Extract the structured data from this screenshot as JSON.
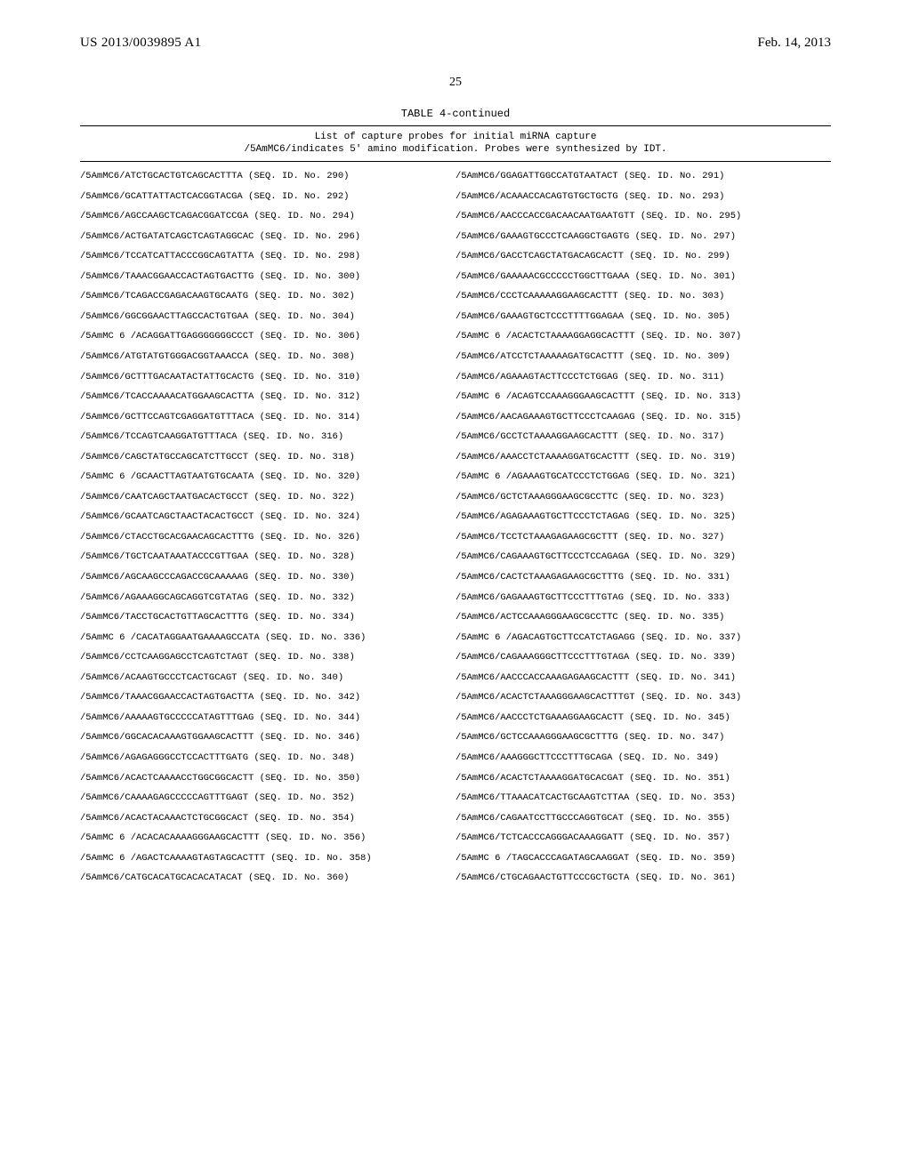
{
  "header": {
    "pub_number": "US 2013/0039895 A1",
    "pub_date": "Feb. 14, 2013"
  },
  "page_number": "25",
  "table": {
    "title": "TABLE 4-continued",
    "subtitle_line1": "List of capture probes for initial miRNA capture",
    "subtitle_line2": "/5AmMC6/indicates 5' amino modification. Probes were synthesized by IDT.",
    "rows": [
      {
        "l": "/5AmMC6/ATCTGCACTGTCAGCACTTTA (SEQ. ID. No. 290)",
        "r": "/5AmMC6/GGAGATTGGCCATGTAATACT (SEQ. ID. No. 291)"
      },
      {
        "l": "/5AmMC6/GCATTATTACTCACGGTACGA (SEQ. ID. No. 292)",
        "r": "/5AmMC6/ACAAACCACAGTGTGCTGCTG (SEQ. ID. No. 293)"
      },
      {
        "l": "/5AmMC6/AGCCAAGCTCAGACGGATCCGA (SEQ. ID. No. 294)",
        "r": "/5AmMC6/AACCCACCGACAACAATGAATGTT (SEQ. ID. No. 295)"
      },
      {
        "l": "/5AmMC6/ACTGATATCAGCTCAGTAGGCAC (SEQ. ID. No. 296)",
        "r": "/5AmMC6/GAAAGTGCCCTCAAGGCTGAGTG (SEQ. ID. No. 297)"
      },
      {
        "l": "/5AmMC6/TCCATCATTACCCGGCAGTATTA (SEQ. ID. No. 298)",
        "r": "/5AmMC6/GACCTCAGCTATGACAGCACTT (SEQ. ID. No. 299)"
      },
      {
        "l": "/5AmMC6/TAAACGGAACCACTAGTGACTTG (SEQ. ID. No. 300)",
        "r": "/5AmMC6/GAAAAACGCCCCCTGGCTTGAAA (SEQ. ID. No. 301)"
      },
      {
        "l": "/5AmMC6/TCAGACCGAGACAAGTGCAATG (SEQ. ID. No. 302)",
        "r": "/5AmMC6/CCCTCAAAAAGGAAGCACTTT (SEQ. ID. No. 303)"
      },
      {
        "l": "/5AmMC6/GGCGGAACTTAGCCACTGTGAA (SEQ. ID. No. 304)",
        "r": "/5AmMC6/GAAAGTGCTCCCTTTTGGAGAA (SEQ. ID. No. 305)"
      },
      {
        "l": "/5AmMC 6 /ACAGGATTGAGGGGGGGCCCT (SEQ. ID. No. 306)",
        "r": "/5AmMC 6 /ACACTCTAAAAGGAGGCACTTT (SEQ. ID. No. 307)"
      },
      {
        "l": "/5AmMC6/ATGTATGTGGGACGGTAAACCA (SEQ. ID. No. 308)",
        "r": "/5AmMC6/ATCCTCTAAAAAGATGCACTTT (SEQ. ID. No. 309)"
      },
      {
        "l": "/5AmMC6/GCTTTGACAATACTATTGCACTG (SEQ. ID. No. 310)",
        "r": "/5AmMC6/AGAAAGTACTTCCCTCTGGAG (SEQ. ID. No. 311)"
      },
      {
        "l": "/5AmMC6/TCACCAAAACATGGAAGCACTTA (SEQ. ID. No. 312)",
        "r": "/5AmMC 6 /ACAGTCCAAAGGGAAGCACTTT (SEQ. ID. No. 313)"
      },
      {
        "l": "/5AmMC6/GCTTCCAGTCGAGGATGTTTACA (SEQ. ID. No. 314)",
        "r": "/5AmMC6/AACAGAAAGTGCTTCCCTCAAGAG (SEQ. ID. No. 315)"
      },
      {
        "l": "/5AmMC6/TCCAGTCAAGGATGTTTACA (SEQ. ID. No. 316)",
        "r": "/5AmMC6/GCCTCTAAAAGGAAGCACTTT (SEQ. ID. No. 317)"
      },
      {
        "l": "/5AmMC6/CAGCTATGCCAGCATCTTGCCT (SEQ. ID. No. 318)",
        "r": "/5AmMC6/AAACCTCTAAAAGGATGCACTTT (SEQ. ID. No. 319)"
      },
      {
        "l": "/5AmMC 6 /GCAACTTAGTAATGTGCAATA (SEQ. ID. No. 320)",
        "r": "/5AmMC 6 /AGAAAGTGCATCCCTCTGGAG (SEQ. ID. No. 321)"
      },
      {
        "l": "/5AmMC6/CAATCAGCTAATGACACTGCCT (SEQ. ID. No. 322)",
        "r": "/5AmMC6/GCTCTAAAGGGAAGCGCCTTC (SEQ. ID. No. 323)"
      },
      {
        "l": "/5AmMC6/GCAATCAGCTAACTACACTGCCT (SEQ. ID. No. 324)",
        "r": "/5AmMC6/AGAGAAAGTGCTTCCCTCTAGAG (SEQ. ID. No. 325)"
      },
      {
        "l": "/5AmMC6/CTACCTGCACGAACAGCACTTTG (SEQ. ID. No. 326)",
        "r": "/5AmMC6/TCCTCTAAAGAGAAGCGCTTT (SEQ. ID. No. 327)"
      },
      {
        "l": "/5AmMC6/TGCTCAATAAATACCCGTTGAA (SEQ. ID. No. 328)",
        "r": "/5AmMC6/CAGAAAGTGCTTCCCTCCAGAGA (SEQ. ID. No. 329)"
      },
      {
        "l": "/5AmMC6/AGCAAGCCCAGACCGCAAAAAG (SEQ. ID. No. 330)",
        "r": "/5AmMC6/CACTCTAAAGAGAAGCGCTTTG (SEQ. ID. No. 331)"
      },
      {
        "l": "/5AmMC6/AGAAAGGCAGCAGGTCGTATAG (SEQ. ID. No. 332)",
        "r": "/5AmMC6/GAGAAAGTGCTTCCCTTTGTAG (SEQ. ID. No. 333)"
      },
      {
        "l": "/5AmMC6/TACCTGCACTGTTAGCACTTTG (SEQ. ID. No. 334)",
        "r": "/5AmMC6/ACTCCAAAGGGAAGCGCCTTC (SEQ. ID. No. 335)"
      },
      {
        "l": "/5AmMC 6 /CACATAGGAATGAAAAGCCATA (SEQ. ID. No. 336)",
        "r": "/5AmMC 6 /AGACAGTGCTTCCATCTAGAGG (SEQ. ID. No. 337)"
      },
      {
        "l": "/5AmMC6/CCTCAAGGAGCCTCAGTCTAGT (SEQ. ID. No. 338)",
        "r": "/5AmMC6/CAGAAAGGGCTTCCCTTTGTAGA (SEQ. ID. No. 339)"
      },
      {
        "l": "/5AmMC6/ACAAGTGCCCTCACTGCAGT (SEQ. ID. No. 340)",
        "r": "/5AmMC6/AACCCACCAAAGAGAAGCACTTT (SEQ. ID. No. 341)"
      },
      {
        "l": "/5AmMC6/TAAACGGAACCACTAGTGACTTA (SEQ. ID. No. 342)",
        "r": "/5AmMC6/ACACTCTAAAGGGAAGCACTTTGT (SEQ. ID. No. 343)"
      },
      {
        "l": "/5AmMC6/AAAAAGTGCCCCCATAGTTTGAG (SEQ. ID. No. 344)",
        "r": "/5AmMC6/AACCCTCTGAAAGGAAGCACTT (SEQ. ID. No. 345)"
      },
      {
        "l": "/5AmMC6/GGCACACAAAGTGGAAGCACTTT (SEQ. ID. No. 346)",
        "r": "/5AmMC6/GCTCCAAAGGGAAGCGCTTTG (SEQ. ID. No. 347)"
      },
      {
        "l": "/5AmMC6/AGAGAGGGCCTCCACTTTGATG (SEQ. ID. No. 348)",
        "r": "/5AmMC6/AAAGGGCTTCCCTTTGCAGA (SEQ. ID. No. 349)"
      },
      {
        "l": "/5AmMC6/ACACTCAAAACCTGGCGGCACTT (SEQ. ID. No. 350)",
        "r": "/5AmMC6/ACACTCTAAAAGGATGCACGAT (SEQ. ID. No. 351)"
      },
      {
        "l": "/5AmMC6/CAAAAGAGCCCCCAGTTTGAGT (SEQ. ID. No. 352)",
        "r": "/5AmMC6/TTAAACATCACTGCAAGTCTTAA (SEQ. ID. No. 353)"
      },
      {
        "l": "/5AmMC6/ACACTACAAACTCTGCGGCACT (SEQ. ID. No. 354)",
        "r": "/5AmMC6/CAGAATCCTTGCCCAGGTGCAT (SEQ. ID. No. 355)"
      },
      {
        "l": "/5AmMC 6 /ACACACAAAAGGGAAGCACTTT (SEQ. ID. No. 356)",
        "r": "/5AmMC6/TCTCACCCAGGGACAAAGGATT (SEQ. ID. No. 357)"
      },
      {
        "l": "/5AmMC 6 /AGACTCAAAAGTAGTAGCACTTT (SEQ. ID. No. 358)",
        "r": "/5AmMC 6 /TAGCACCCAGATAGCAAGGAT (SEQ. ID. No. 359)"
      },
      {
        "l": "/5AmMC6/CATGCACATGCACACATACAT (SEQ. ID. No. 360)",
        "r": "/5AmMC6/CTGCAGAACTGTTCCCGCTGCTA (SEQ. ID. No. 361)"
      }
    ]
  }
}
